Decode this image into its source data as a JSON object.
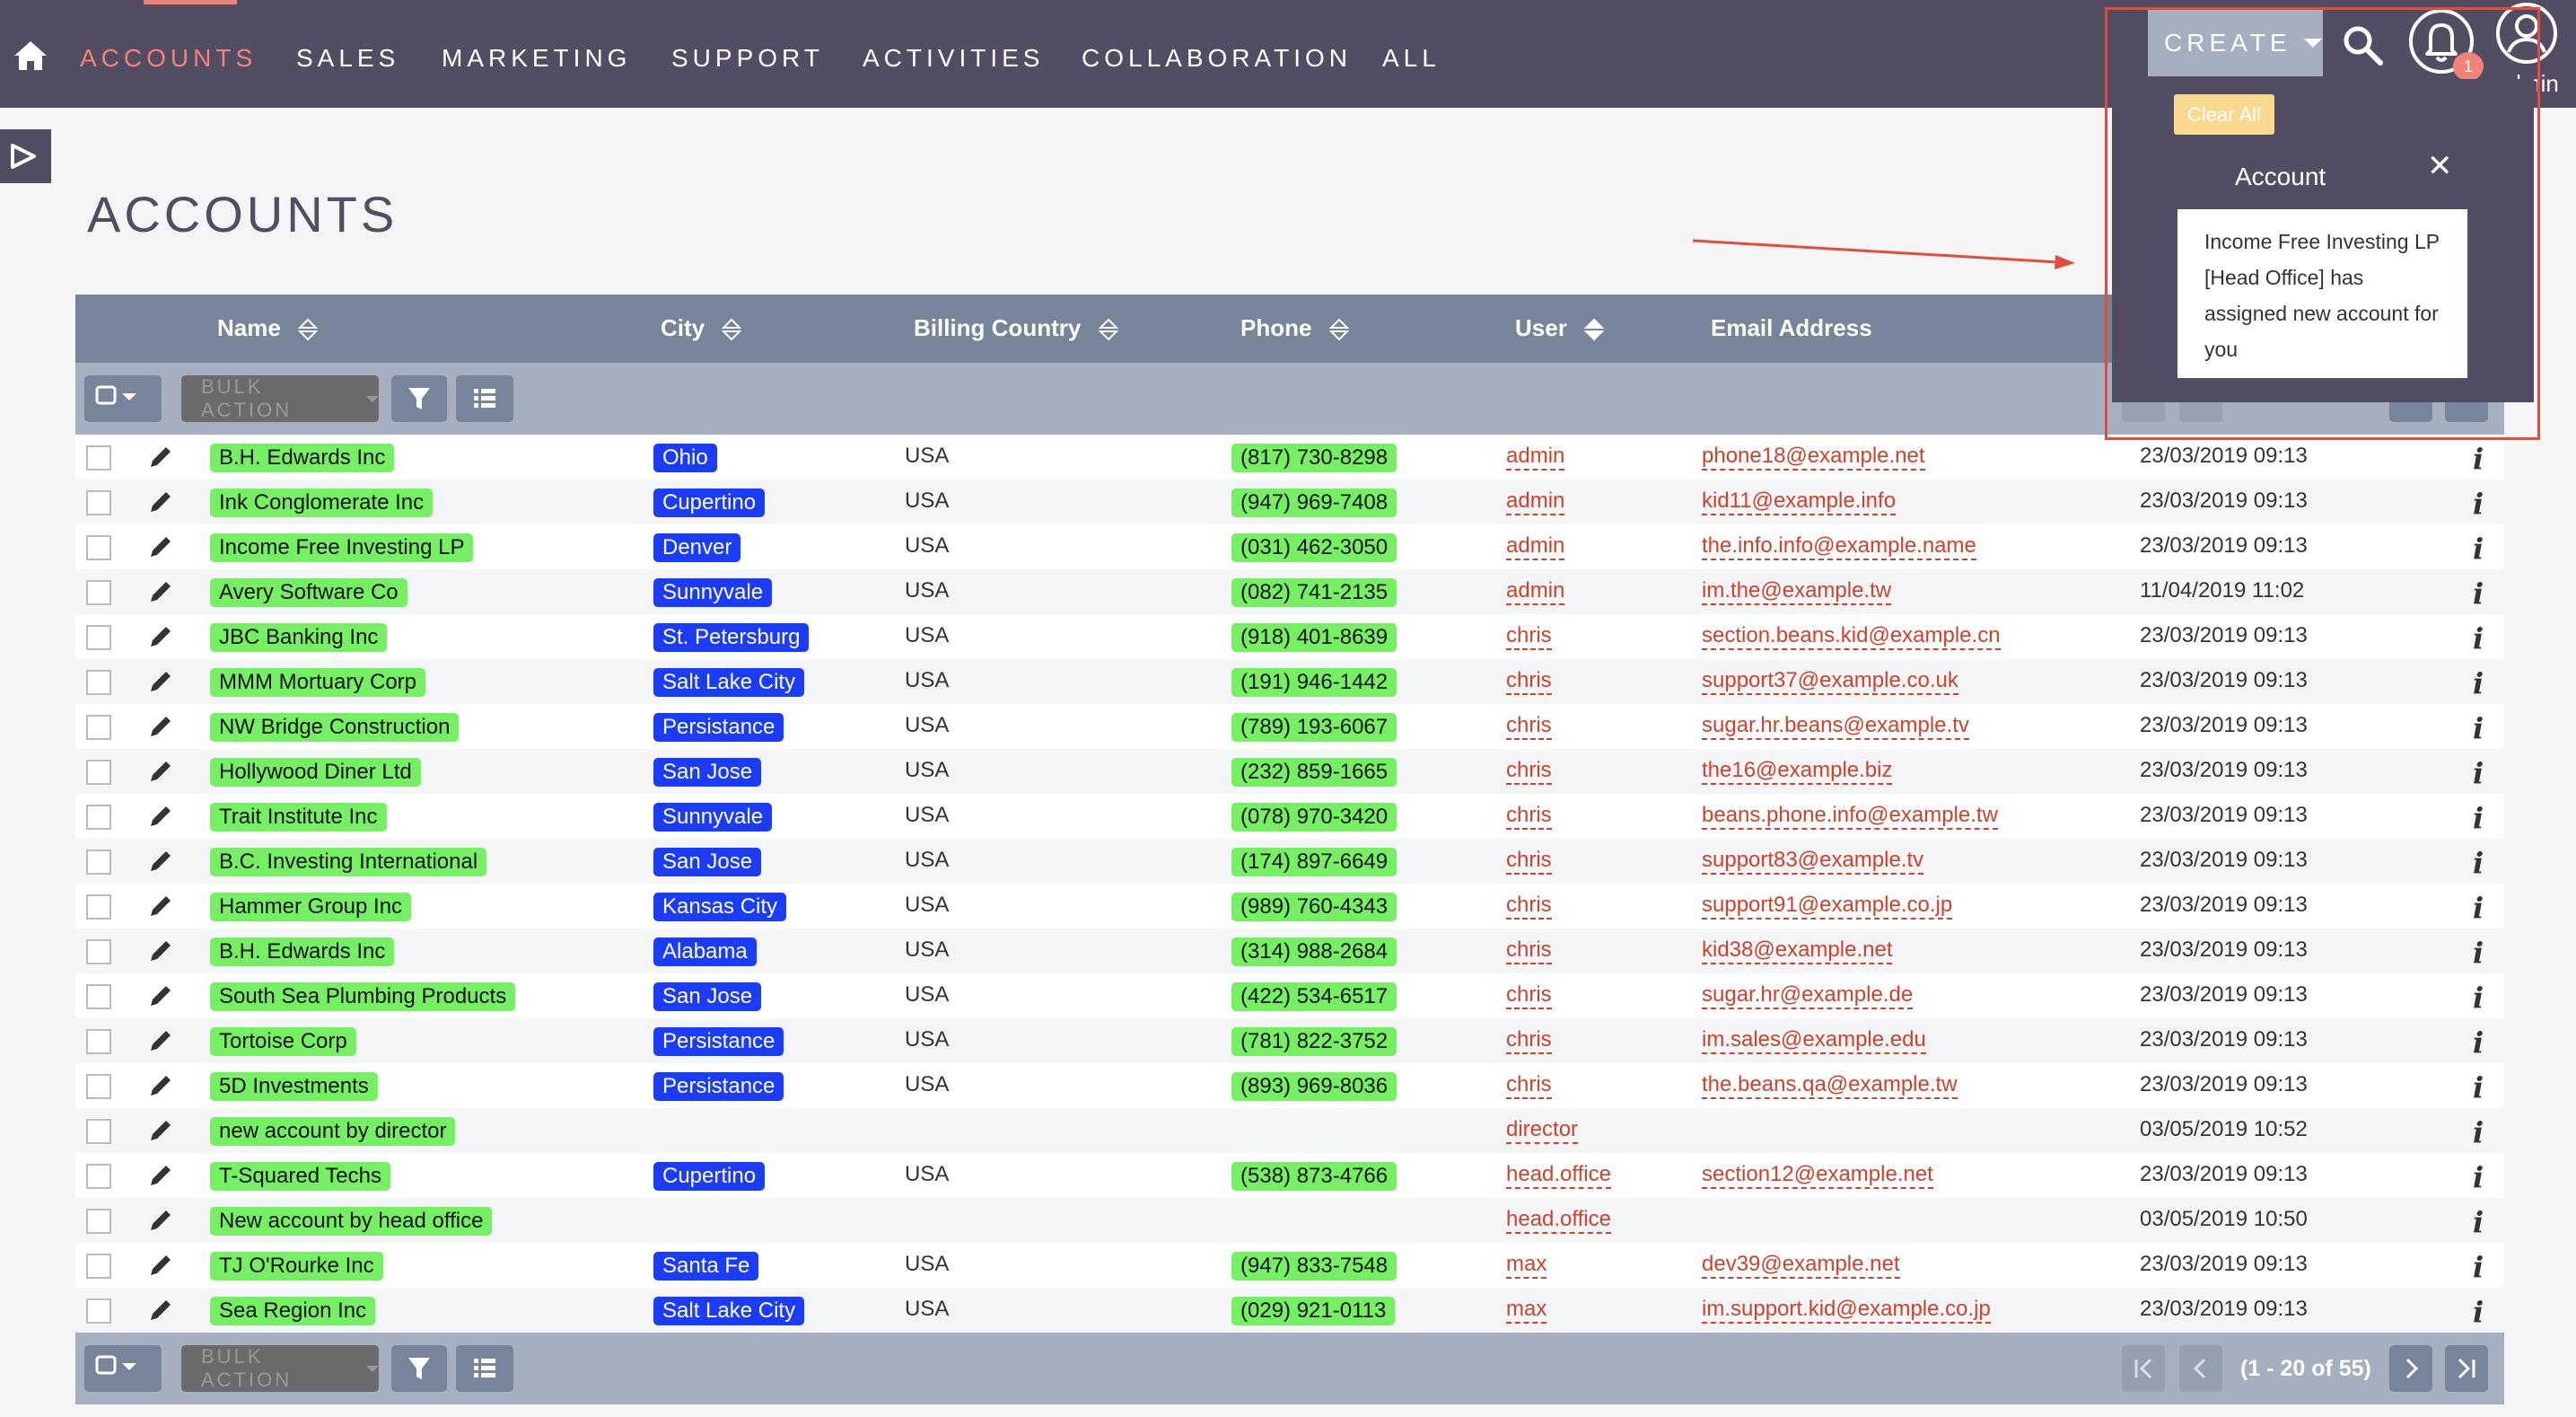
{
  "nav": {
    "items": [
      "ACCOUNTS",
      "SALES",
      "MARKETING",
      "SUPPORT",
      "ACTIVITIES",
      "COLLABORATION",
      "ALL"
    ],
    "create_label": "CREATE",
    "notification_count": "1",
    "user_label": "admin"
  },
  "page": {
    "title": "ACCOUNTS"
  },
  "table": {
    "headers": {
      "name": "Name",
      "city": "City",
      "billing_country": "Billing Country",
      "phone": "Phone",
      "user": "User",
      "email": "Email Address"
    },
    "bulk_action_label": "BULK ACTION",
    "pagination_label": "(1 - 20 of 55)",
    "rows": [
      {
        "name": "B.H. Edwards Inc",
        "city": "Ohio",
        "country": "USA",
        "phone": "(817) 730-8298",
        "user": "admin",
        "email": "phone18@example.net",
        "date": "23/03/2019 09:13"
      },
      {
        "name": "Ink Conglomerate Inc",
        "city": "Cupertino",
        "country": "USA",
        "phone": "(947) 969-7408",
        "user": "admin",
        "email": "kid11@example.info",
        "date": "23/03/2019 09:13"
      },
      {
        "name": "Income Free Investing LP",
        "city": "Denver",
        "country": "USA",
        "phone": "(031) 462-3050",
        "user": "admin",
        "email": "the.info.info@example.name",
        "date": "23/03/2019 09:13"
      },
      {
        "name": "Avery Software Co",
        "city": "Sunnyvale",
        "country": "USA",
        "phone": "(082) 741-2135",
        "user": "admin",
        "email": "im.the@example.tw",
        "date": "11/04/2019 11:02"
      },
      {
        "name": "JBC Banking Inc",
        "city": "St. Petersburg",
        "country": "USA",
        "phone": "(918) 401-8639",
        "user": "chris",
        "email": "section.beans.kid@example.cn",
        "date": "23/03/2019 09:13"
      },
      {
        "name": "MMM Mortuary Corp",
        "city": "Salt Lake City",
        "country": "USA",
        "phone": "(191) 946-1442",
        "user": "chris",
        "email": "support37@example.co.uk",
        "date": "23/03/2019 09:13"
      },
      {
        "name": "NW Bridge Construction",
        "city": "Persistance",
        "country": "USA",
        "phone": "(789) 193-6067",
        "user": "chris",
        "email": "sugar.hr.beans@example.tv",
        "date": "23/03/2019 09:13"
      },
      {
        "name": "Hollywood Diner Ltd",
        "city": "San Jose",
        "country": "USA",
        "phone": "(232) 859-1665",
        "user": "chris",
        "email": "the16@example.biz",
        "date": "23/03/2019 09:13"
      },
      {
        "name": "Trait Institute Inc",
        "city": "Sunnyvale",
        "country": "USA",
        "phone": "(078) 970-3420",
        "user": "chris",
        "email": "beans.phone.info@example.tw",
        "date": "23/03/2019 09:13"
      },
      {
        "name": "B.C. Investing International",
        "city": "San Jose",
        "country": "USA",
        "phone": "(174) 897-6649",
        "user": "chris",
        "email": "support83@example.tv",
        "date": "23/03/2019 09:13"
      },
      {
        "name": "Hammer Group Inc",
        "city": "Kansas City",
        "country": "USA",
        "phone": "(989) 760-4343",
        "user": "chris",
        "email": "support91@example.co.jp",
        "date": "23/03/2019 09:13"
      },
      {
        "name": "B.H. Edwards Inc",
        "city": "Alabama",
        "country": "USA",
        "phone": "(314) 988-2684",
        "user": "chris",
        "email": "kid38@example.net",
        "date": "23/03/2019 09:13"
      },
      {
        "name": "South Sea Plumbing Products",
        "city": "San Jose",
        "country": "USA",
        "phone": "(422) 534-6517",
        "user": "chris",
        "email": "sugar.hr@example.de",
        "date": "23/03/2019 09:13"
      },
      {
        "name": "Tortoise Corp",
        "city": "Persistance",
        "country": "USA",
        "phone": "(781) 822-3752",
        "user": "chris",
        "email": "im.sales@example.edu",
        "date": "23/03/2019 09:13"
      },
      {
        "name": "5D Investments",
        "city": "Persistance",
        "country": "USA",
        "phone": "(893) 969-8036",
        "user": "chris",
        "email": "the.beans.qa@example.tw",
        "date": "23/03/2019 09:13"
      },
      {
        "name": "new account by director",
        "city": "",
        "country": "",
        "phone": "",
        "user": "director",
        "email": "",
        "date": "03/05/2019 10:52"
      },
      {
        "name": "T-Squared Techs",
        "city": "Cupertino",
        "country": "USA",
        "phone": "(538) 873-4766",
        "user": "head.office",
        "email": "section12@example.net",
        "date": "23/03/2019 09:13"
      },
      {
        "name": "New account by head office",
        "city": "",
        "country": "",
        "phone": "",
        "user": "head.office",
        "email": "",
        "date": "03/05/2019 10:50"
      },
      {
        "name": "TJ O'Rourke Inc",
        "city": "Santa Fe",
        "country": "USA",
        "phone": "(947) 833-7548",
        "user": "max",
        "email": "dev39@example.net",
        "date": "23/03/2019 09:13"
      },
      {
        "name": "Sea Region Inc",
        "city": "Salt Lake City",
        "country": "USA",
        "phone": "(029) 921-0113",
        "user": "max",
        "email": "im.support.kid@example.co.jp",
        "date": "23/03/2019 09:13"
      }
    ]
  },
  "notification": {
    "clear_all_label": "Clear All",
    "title": "Account",
    "message": "Income Free Investing LP [Head Office] has assigned new account for you"
  },
  "colors": {
    "nav_bg": "#534d64",
    "accent": "#f08377",
    "name_tag": "#75f062",
    "city_tag": "#1b3cfa",
    "link": "#d0412b",
    "annotation_red": "#e24c3e"
  }
}
